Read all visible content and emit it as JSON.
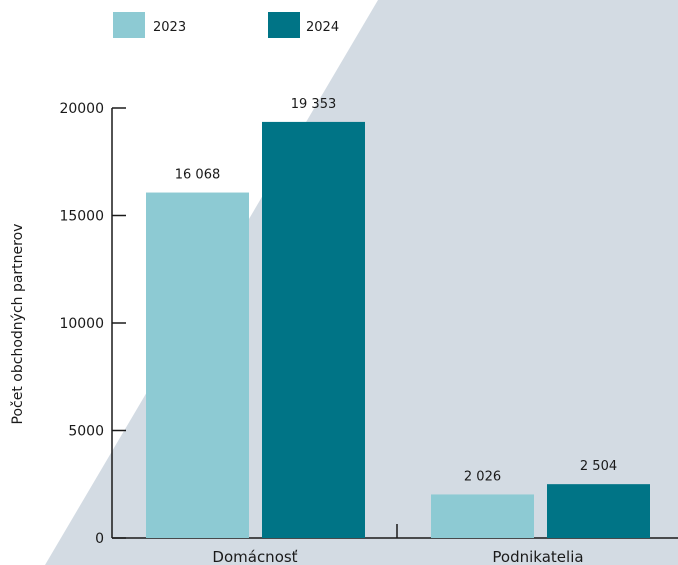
{
  "chart_data": {
    "type": "bar",
    "categories": [
      "Domácnosť",
      "Podnikatelia"
    ],
    "series": [
      {
        "name": "2023",
        "values": [
          16068,
          2026
        ],
        "labels": [
          "16 068",
          "2 026"
        ],
        "color": "#8dcad3"
      },
      {
        "name": "2024",
        "values": [
          19353,
          2504
        ],
        "labels": [
          "19 353",
          "2 504"
        ],
        "color": "#007486"
      }
    ],
    "ylabel": "Počet obchodných partnerov",
    "xlabel": "",
    "ylim": [
      0,
      20000
    ],
    "yticks": [
      0,
      5000,
      10000,
      15000,
      20000
    ],
    "grid": false,
    "legend": "top-left",
    "background_color": "#d3dbe3"
  }
}
